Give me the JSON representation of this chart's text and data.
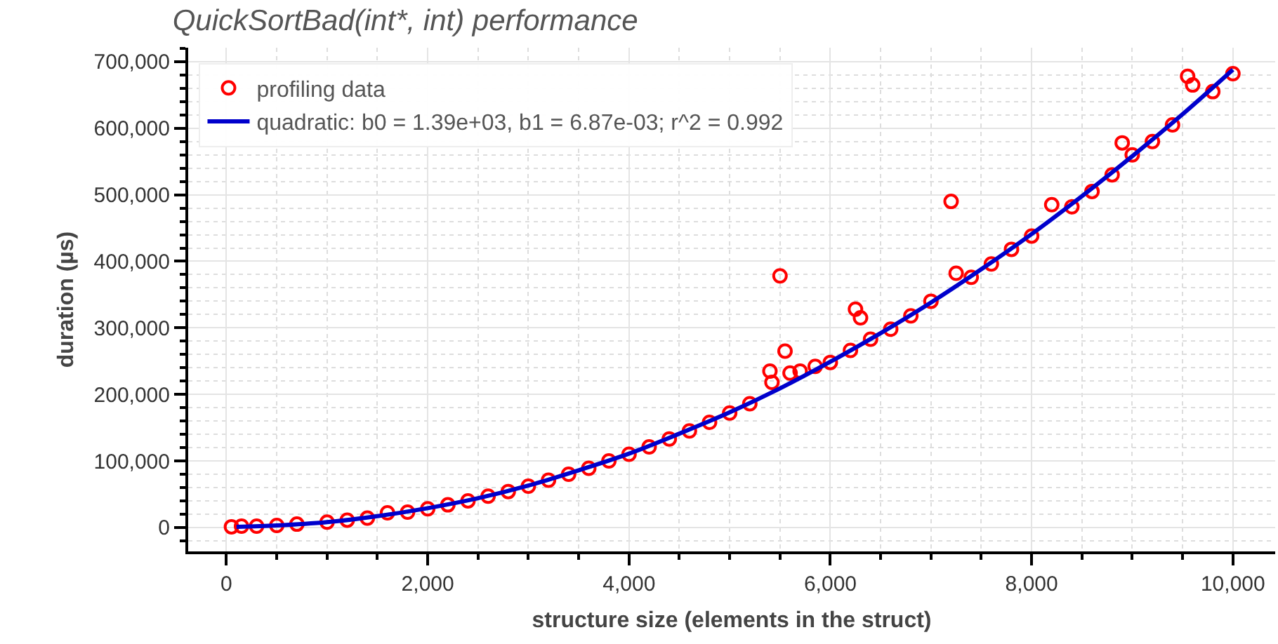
{
  "chart_data": {
    "type": "scatter",
    "title": "QuickSortBad(int*, int) performance",
    "xlabel": "structure size (elements in the struct)",
    "ylabel": "duration (µs)",
    "xlim": [
      -380,
      10420
    ],
    "ylim": [
      -36000,
      721000
    ],
    "xticks": [
      0,
      {
        "value": 2000,
        "label": "2,000"
      },
      {
        "value": 4000,
        "label": "4,000"
      },
      {
        "value": 6000,
        "label": "6,000"
      },
      {
        "value": 8000,
        "label": "8,000"
      },
      {
        "value": 10000,
        "label": "10,000"
      }
    ],
    "yticks": [
      0,
      {
        "value": 100000,
        "label": "100,000"
      },
      {
        "value": 200000,
        "label": "200,000"
      },
      {
        "value": 300000,
        "label": "300,000"
      },
      {
        "value": 400000,
        "label": "400,000"
      },
      {
        "value": 500000,
        "label": "500,000"
      },
      {
        "value": 600000,
        "label": "600,000"
      },
      {
        "value": 700000,
        "label": "700,000"
      }
    ],
    "grid": true,
    "legend": "top left",
    "series": [
      {
        "name": "profiling data",
        "marker": "circle",
        "color": "#ff0000",
        "x": [
          50,
          150,
          300,
          500,
          700,
          1000,
          1200,
          1400,
          1600,
          1800,
          2000,
          2200,
          2400,
          2600,
          2800,
          3000,
          3200,
          3400,
          3600,
          3800,
          4000,
          4200,
          4400,
          4600,
          4800,
          5000,
          5200,
          5400,
          5420,
          5500,
          5550,
          5600,
          5700,
          5850,
          6000,
          6200,
          6250,
          6300,
          6400,
          6600,
          6800,
          7000,
          7200,
          7250,
          7400,
          7600,
          7800,
          8000,
          8200,
          8400,
          8600,
          8800,
          8900,
          9000,
          9200,
          9400,
          9550,
          9600,
          9800,
          10000
        ],
        "values": [
          1000,
          2000,
          2000,
          3000,
          5000,
          8000,
          11000,
          14000,
          22000,
          23000,
          28000,
          34000,
          40000,
          47000,
          54000,
          62000,
          71000,
          80000,
          89000,
          100000,
          110000,
          121000,
          133000,
          145000,
          158000,
          172000,
          186000,
          235000,
          218000,
          378000,
          265000,
          232000,
          235000,
          242000,
          248000,
          266000,
          328000,
          315000,
          283000,
          298000,
          318000,
          340000,
          490000,
          382000,
          376000,
          396000,
          418000,
          438000,
          485000,
          482000,
          505000,
          530000,
          578000,
          560000,
          580000,
          605000,
          678000,
          665000,
          655000,
          682000
        ]
      },
      {
        "name": "quadratic: b0 = 1.39e+03, b1 = 6.87e-03; r^2 = 0.992",
        "type": "line",
        "marker": "none",
        "color": "#0000cc",
        "x": [
          100,
          500,
          1000,
          1500,
          2000,
          2500,
          3000,
          3500,
          4000,
          4500,
          5000,
          5500,
          6000,
          6500,
          7000,
          7500,
          8000,
          8500,
          9000,
          9500,
          10000
        ],
        "values": [
          1000,
          3000,
          8000,
          17000,
          29000,
          44000,
          63000,
          86000,
          111000,
          141000,
          173000,
          209000,
          249000,
          292000,
          338000,
          388000,
          441000,
          498000,
          558000,
          621000,
          688000
        ]
      }
    ]
  }
}
